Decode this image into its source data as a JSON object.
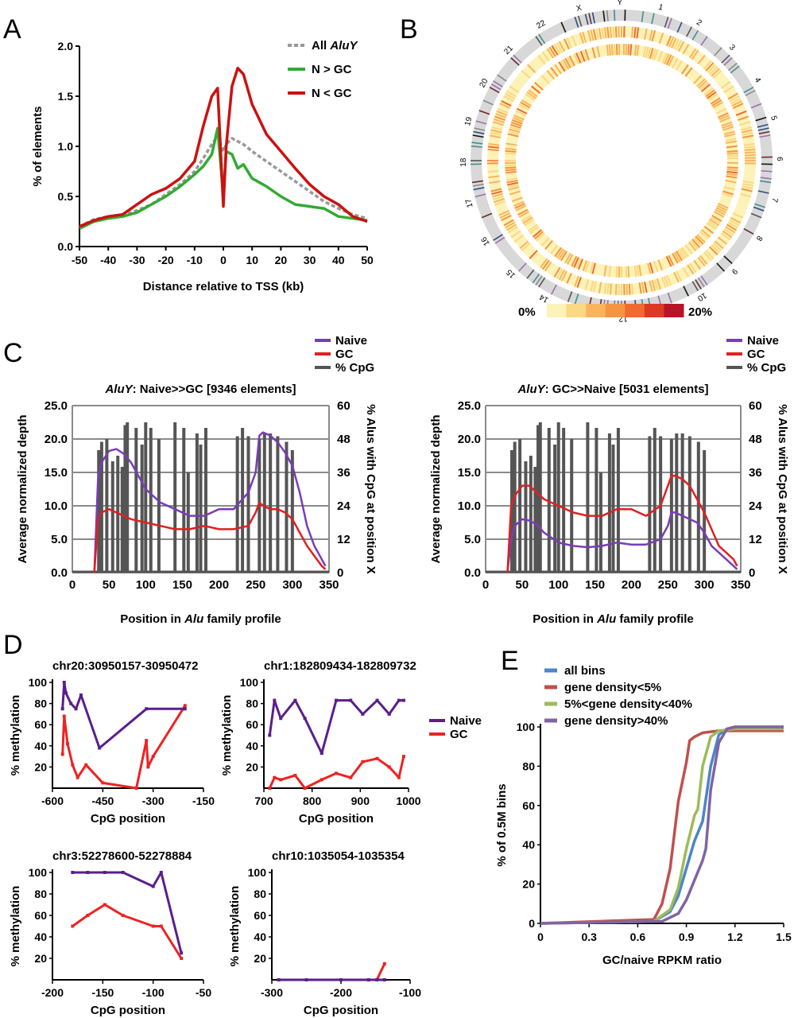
{
  "figure": {
    "panel_labels": [
      "A",
      "B",
      "C",
      "D",
      "E"
    ]
  },
  "chart_data": [
    {
      "id": "A",
      "type": "line",
      "xlabel": "Distance relative to TSS (kb)",
      "ylabel": "% of elements",
      "xlim": [
        -50,
        50
      ],
      "ylim": [
        0,
        2.0
      ],
      "x_ticks": [
        "-50",
        "-40",
        "-30",
        "-20",
        "-10",
        "0",
        "10",
        "20",
        "30",
        "40",
        "50"
      ],
      "y_ticks": [
        "0.0",
        "0.5",
        "1.0",
        "1.5",
        "2.0"
      ],
      "legend_position": "top-right",
      "x": [
        -50,
        -45,
        -40,
        -35,
        -30,
        -25,
        -20,
        -15,
        -10,
        -7,
        -4,
        -2,
        0,
        1,
        3,
        5,
        7,
        10,
        15,
        20,
        25,
        30,
        35,
        40,
        45,
        50
      ],
      "series": [
        {
          "name_prefix": "All ",
          "name_italic": "AluY",
          "color": "#999999",
          "values": [
            0.2,
            0.27,
            0.3,
            0.31,
            0.36,
            0.42,
            0.52,
            0.62,
            0.75,
            0.88,
            1.02,
            1.1,
            0.95,
            1.02,
            1.08,
            1.05,
            1.02,
            0.95,
            0.85,
            0.75,
            0.65,
            0.55,
            0.45,
            0.38,
            0.32,
            0.28
          ]
        },
        {
          "name": "N > GC",
          "color": "#33aa33",
          "values": [
            0.18,
            0.25,
            0.28,
            0.3,
            0.34,
            0.42,
            0.5,
            0.6,
            0.72,
            0.8,
            0.92,
            1.18,
            0.5,
            0.95,
            0.92,
            0.78,
            0.82,
            0.68,
            0.6,
            0.5,
            0.42,
            0.4,
            0.38,
            0.3,
            0.28,
            0.26
          ]
        },
        {
          "name": "N < GC",
          "color": "#cc1111",
          "values": [
            0.2,
            0.26,
            0.3,
            0.32,
            0.42,
            0.52,
            0.58,
            0.68,
            0.85,
            1.2,
            1.5,
            1.58,
            0.4,
            1.0,
            1.6,
            1.78,
            1.72,
            1.42,
            1.12,
            0.95,
            0.78,
            0.62,
            0.5,
            0.42,
            0.3,
            0.25
          ]
        }
      ]
    },
    {
      "id": "B",
      "type": "heatmap",
      "chromosome_labels": [
        "1",
        "2",
        "3",
        "4",
        "5",
        "6",
        "7",
        "8",
        "9",
        "10",
        "11",
        "12",
        "13",
        "14",
        "15",
        "16",
        "17",
        "18",
        "19",
        "20",
        "21",
        "22",
        "X",
        "Y"
      ],
      "scale_min_label": "0%",
      "scale_max_label": "20%",
      "scale_colors": [
        "#fdf2b8",
        "#fbd884",
        "#f9b55c",
        "#f5953f",
        "#ef6b2f",
        "#db3a25",
        "#b81428"
      ]
    },
    {
      "id": "C-left",
      "type": "line",
      "title_italic": "AluY",
      "title_rest": ": Naive>>GC [9346 elements]",
      "xlabel_parts": [
        "Position in ",
        "Alu",
        " family profile"
      ],
      "ylabel": "Average normalized depth",
      "ylabel_right": "% Alus with CpG at position X",
      "xlim": [
        0,
        350
      ],
      "ylim": [
        0,
        25
      ],
      "ylim_right": [
        0,
        60
      ],
      "x_ticks": [
        "0",
        "50",
        "100",
        "150",
        "200",
        "250",
        "300",
        "350"
      ],
      "y_ticks": [
        "0.0",
        "5.0",
        "10.0",
        "15.0",
        "20.0",
        "25.0"
      ],
      "y_ticks_right": [
        "0",
        "12",
        "24",
        "36",
        "48",
        "60"
      ],
      "legend_position": "top-right",
      "legend": [
        "Naive",
        "GC",
        "% CpG"
      ],
      "cpg_positions": [
        36,
        40,
        47,
        55,
        62,
        68,
        72,
        75,
        87,
        95,
        100,
        107,
        118,
        140,
        152,
        158,
        170,
        175,
        182,
        225,
        232,
        240,
        255,
        262,
        270,
        280,
        292,
        300
      ],
      "cpg_values": [
        44,
        47,
        48,
        40,
        42,
        38,
        53,
        54,
        52,
        46,
        54,
        52,
        48,
        54,
        52,
        36,
        50,
        46,
        52,
        49,
        52,
        49,
        48,
        50,
        50,
        49,
        47,
        44
      ],
      "x": [
        30,
        35,
        40,
        50,
        60,
        70,
        80,
        100,
        120,
        140,
        160,
        180,
        200,
        220,
        240,
        250,
        255,
        260,
        270,
        280,
        290,
        300,
        310,
        320,
        330,
        340,
        345
      ],
      "series": [
        {
          "name": "Naive",
          "color": "#7a3cb8",
          "values": [
            0,
            14,
            16.5,
            18.2,
            18.5,
            17.8,
            16.5,
            12.5,
            10.5,
            9.5,
            8.5,
            8.5,
            9.5,
            9.5,
            12,
            15,
            20.5,
            21,
            20.5,
            19.5,
            18,
            16,
            12,
            7,
            4,
            2,
            1
          ]
        },
        {
          "name": "GC",
          "color": "#e02020",
          "values": [
            0,
            8,
            9,
            9.5,
            9,
            8.5,
            8,
            7.5,
            7,
            6.5,
            6.5,
            7,
            6.5,
            6.5,
            7,
            9,
            10.5,
            10,
            9.5,
            9.5,
            9,
            8,
            6,
            4,
            2.5,
            1,
            0.5
          ]
        }
      ]
    },
    {
      "id": "C-right",
      "type": "line",
      "title_italic": "AluY",
      "title_rest": ": GC>>Naive [5031 elements]",
      "xlabel_parts": [
        "Position in ",
        "Alu",
        " family profile"
      ],
      "ylabel": "Average normalized depth",
      "ylabel_right": "% Alus with CpG at position X",
      "xlim": [
        0,
        350
      ],
      "ylim": [
        0,
        25
      ],
      "ylim_right": [
        0,
        60
      ],
      "x_ticks": [
        "0",
        "50",
        "100",
        "150",
        "200",
        "250",
        "300",
        "350"
      ],
      "y_ticks": [
        "0.0",
        "5.0",
        "10.0",
        "15.0",
        "20.0",
        "25.0"
      ],
      "y_ticks_right": [
        "0",
        "12",
        "24",
        "36",
        "48",
        "60"
      ],
      "legend_position": "top-right",
      "legend": [
        "Naive",
        "GC",
        "% CpG"
      ],
      "cpg_positions": [
        36,
        40,
        47,
        55,
        62,
        68,
        72,
        75,
        87,
        95,
        100,
        107,
        118,
        140,
        152,
        158,
        170,
        175,
        182,
        225,
        232,
        240,
        255,
        262,
        270,
        280,
        292,
        300
      ],
      "cpg_values": [
        44,
        47,
        48,
        40,
        42,
        38,
        53,
        54,
        52,
        46,
        54,
        52,
        48,
        54,
        52,
        36,
        50,
        46,
        52,
        49,
        52,
        49,
        48,
        50,
        50,
        49,
        47,
        44
      ],
      "x": [
        30,
        35,
        40,
        50,
        60,
        70,
        80,
        100,
        120,
        140,
        160,
        180,
        200,
        220,
        240,
        250,
        255,
        260,
        270,
        280,
        290,
        300,
        310,
        320,
        330,
        340,
        345
      ],
      "series": [
        {
          "name": "Naive",
          "color": "#7a3cb8",
          "values": [
            0,
            5,
            7,
            8,
            7.8,
            7.2,
            6,
            4.5,
            4,
            3.8,
            4,
            4.5,
            4.2,
            4.2,
            5,
            7,
            9,
            9,
            8.5,
            8,
            7.5,
            6,
            4,
            3,
            2,
            1,
            0.5
          ]
        },
        {
          "name": "GC",
          "color": "#e02020",
          "values": [
            0,
            10,
            11.5,
            13,
            13,
            12,
            11,
            10,
            9,
            8.5,
            8.5,
            9.5,
            9.5,
            8.5,
            10,
            13,
            14.5,
            14.5,
            14,
            13,
            11,
            9,
            6.5,
            4,
            3,
            2,
            1
          ]
        }
      ]
    },
    {
      "id": "D1",
      "type": "line",
      "title": "chr20:30950157-30950472",
      "xlabel": "CpG position",
      "ylabel": "% methylation",
      "xlim": [
        -600,
        -150
      ],
      "ylim": [
        0,
        100
      ],
      "x_ticks": [
        "-600",
        "-450",
        "-300",
        "-150"
      ],
      "y_ticks": [
        "20",
        "40",
        "60",
        "80",
        "100"
      ],
      "x": [
        -570,
        -565,
        -560,
        -545,
        -530,
        -515,
        -460,
        -320,
        -205
      ],
      "series": [
        {
          "name": "Naive",
          "color": "#5b1e8c",
          "values": [
            75,
            100,
            90,
            80,
            75,
            88,
            38,
            75,
            75
          ]
        },
        {
          "name": "GC",
          "color": "#ee2222",
          "values": [
            35,
            68,
            45,
            22,
            12,
            8,
            0,
            0,
            78
          ]
        }
      ],
      "x_gc": [
        -570,
        -565,
        -555,
        -540,
        -525,
        -500,
        -450,
        -350,
        -320,
        -315,
        -300,
        -205
      ],
      "gc_values": [
        32,
        68,
        42,
        22,
        10,
        22,
        5,
        0,
        45,
        20,
        30,
        78
      ]
    },
    {
      "id": "D2",
      "type": "line",
      "title": "chr1:182809434-182809732",
      "xlabel": "CpG position",
      "ylabel": "% methylation",
      "xlim": [
        700,
        1000
      ],
      "ylim": [
        0,
        100
      ],
      "x_ticks": [
        "700",
        "800",
        "900",
        "1000"
      ],
      "y_ticks": [
        "20",
        "40",
        "60",
        "80",
        "100"
      ],
      "legend_position": "right",
      "legend": [
        "Naive",
        "GC"
      ],
      "x": [
        712,
        722,
        735,
        765,
        785,
        820,
        850,
        880,
        905,
        935,
        960,
        980,
        990
      ],
      "series": [
        {
          "name": "Naive",
          "color": "#5b1e8c",
          "values": [
            50,
            83,
            66,
            83,
            66,
            33,
            83,
            83,
            70,
            83,
            70,
            83,
            83
          ]
        },
        {
          "name": "GC",
          "color": "#ee2222",
          "values": [
            0,
            10,
            8,
            12,
            0,
            8,
            14,
            10,
            25,
            28,
            20,
            10,
            30
          ]
        }
      ]
    },
    {
      "id": "D3",
      "type": "line",
      "title": "chr3:52278600-52278884",
      "xlabel": "CpG position",
      "ylabel": "% methylation",
      "xlim": [
        -200,
        -50
      ],
      "ylim": [
        0,
        100
      ],
      "x_ticks": [
        "-200",
        "-150",
        "-100",
        "-50"
      ],
      "y_ticks": [
        "20",
        "40",
        "60",
        "80",
        "100"
      ],
      "x": [
        -180,
        -165,
        -148,
        -130,
        -100,
        -92,
        -72
      ],
      "series": [
        {
          "name": "Naive",
          "color": "#5b1e8c",
          "values": [
            100,
            100,
            100,
            100,
            87,
            100,
            25
          ]
        },
        {
          "name": "GC",
          "color": "#ee2222",
          "values": [
            50,
            60,
            70,
            60,
            50,
            50,
            20
          ]
        }
      ]
    },
    {
      "id": "D4",
      "type": "line",
      "title": "chr10:1035054-1035354",
      "xlabel": "CpG position",
      "ylabel": "% methylation",
      "xlim": [
        -300,
        -100
      ],
      "ylim": [
        0,
        100
      ],
      "x_ticks": [
        "-300",
        "-200",
        "-100"
      ],
      "y_ticks": [
        "20",
        "40",
        "60",
        "80",
        "100"
      ],
      "x": [
        -290,
        -250,
        -200,
        -160,
        -148,
        -137
      ],
      "series": [
        {
          "name": "Naive",
          "color": "#5b1e8c",
          "values": [
            0,
            0,
            0,
            0,
            0,
            0
          ]
        },
        {
          "name": "GC",
          "color": "#ee2222",
          "values": [
            0,
            0,
            0,
            0,
            0,
            15
          ]
        }
      ]
    },
    {
      "id": "E",
      "type": "line",
      "xlabel": "GC/naive RPKM ratio",
      "ylabel": "% of 0.5M bins",
      "xlim": [
        0,
        1.5
      ],
      "ylim": [
        0,
        100
      ],
      "x_ticks": [
        "0",
        "0.3",
        "0.6",
        "0.9",
        "1.2",
        "1.5"
      ],
      "y_ticks": [
        "0",
        "20",
        "40",
        "60",
        "80",
        "100"
      ],
      "legend_position": "top-left",
      "series": [
        {
          "name": "all bins",
          "color": "#4a86c8",
          "x": [
            0,
            0.7,
            0.8,
            0.85,
            0.9,
            0.95,
            1.0,
            1.05,
            1.1,
            1.15,
            1.2,
            1.5
          ],
          "values": [
            0,
            1,
            6,
            14,
            28,
            42,
            52,
            80,
            96,
            99,
            100,
            100
          ]
        },
        {
          "name": "gene density<5%",
          "color": "#c0504d",
          "x": [
            0,
            0.7,
            0.75,
            0.8,
            0.85,
            0.9,
            0.92,
            0.95,
            1.0,
            1.1,
            1.5
          ],
          "values": [
            0,
            2,
            10,
            28,
            62,
            82,
            93,
            95,
            97,
            98,
            98
          ]
        },
        {
          "name": "5%<gene density<40%",
          "color": "#9bbb59",
          "x": [
            0,
            0.7,
            0.8,
            0.85,
            0.9,
            0.95,
            0.97,
            1.0,
            1.05,
            1.1,
            1.2,
            1.5
          ],
          "values": [
            0,
            1,
            7,
            18,
            38,
            55,
            58,
            80,
            95,
            98,
            99,
            99
          ]
        },
        {
          "name": "gene density>40%",
          "color": "#8064a2",
          "x": [
            0,
            0.75,
            0.85,
            0.9,
            0.95,
            1.0,
            1.02,
            1.05,
            1.1,
            1.15,
            1.2,
            1.5
          ],
          "values": [
            0,
            1,
            5,
            12,
            22,
            32,
            38,
            68,
            92,
            99,
            100,
            100
          ]
        }
      ]
    }
  ]
}
